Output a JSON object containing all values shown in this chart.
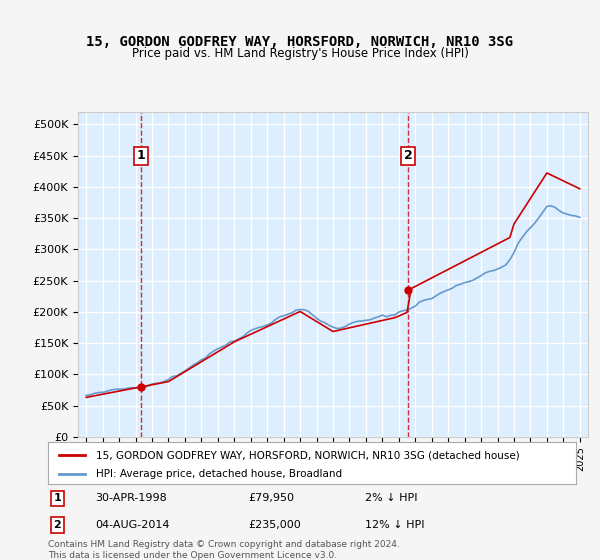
{
  "title": "15, GORDON GODFREY WAY, HORSFORD, NORWICH, NR10 3SG",
  "subtitle": "Price paid vs. HM Land Registry's House Price Index (HPI)",
  "legend_line1": "15, GORDON GODFREY WAY, HORSFORD, NORWICH, NR10 3SG (detached house)",
  "legend_line2": "HPI: Average price, detached house, Broadland",
  "annotation1_label": "1",
  "annotation1_date": "30-APR-1998",
  "annotation1_price": "£79,950",
  "annotation1_hpi": "2% ↓ HPI",
  "annotation1_year": 1998.33,
  "annotation1_value": 79950,
  "annotation2_label": "2",
  "annotation2_date": "04-AUG-2014",
  "annotation2_price": "£235,000",
  "annotation2_hpi": "12% ↓ HPI",
  "annotation2_year": 2014.58,
  "annotation2_value": 235000,
  "sale_color": "#cc0000",
  "hpi_color": "#6699cc",
  "background_color": "#ddeeff",
  "plot_bg_color": "#ddeeff",
  "grid_color": "#ffffff",
  "footer_text": "Contains HM Land Registry data © Crown copyright and database right 2024.\nThis data is licensed under the Open Government Licence v3.0.",
  "ylim": [
    0,
    520000
  ],
  "yticks": [
    0,
    50000,
    100000,
    150000,
    200000,
    250000,
    300000,
    350000,
    400000,
    450000,
    500000
  ],
  "xmin": 1994.5,
  "xmax": 2025.5
}
